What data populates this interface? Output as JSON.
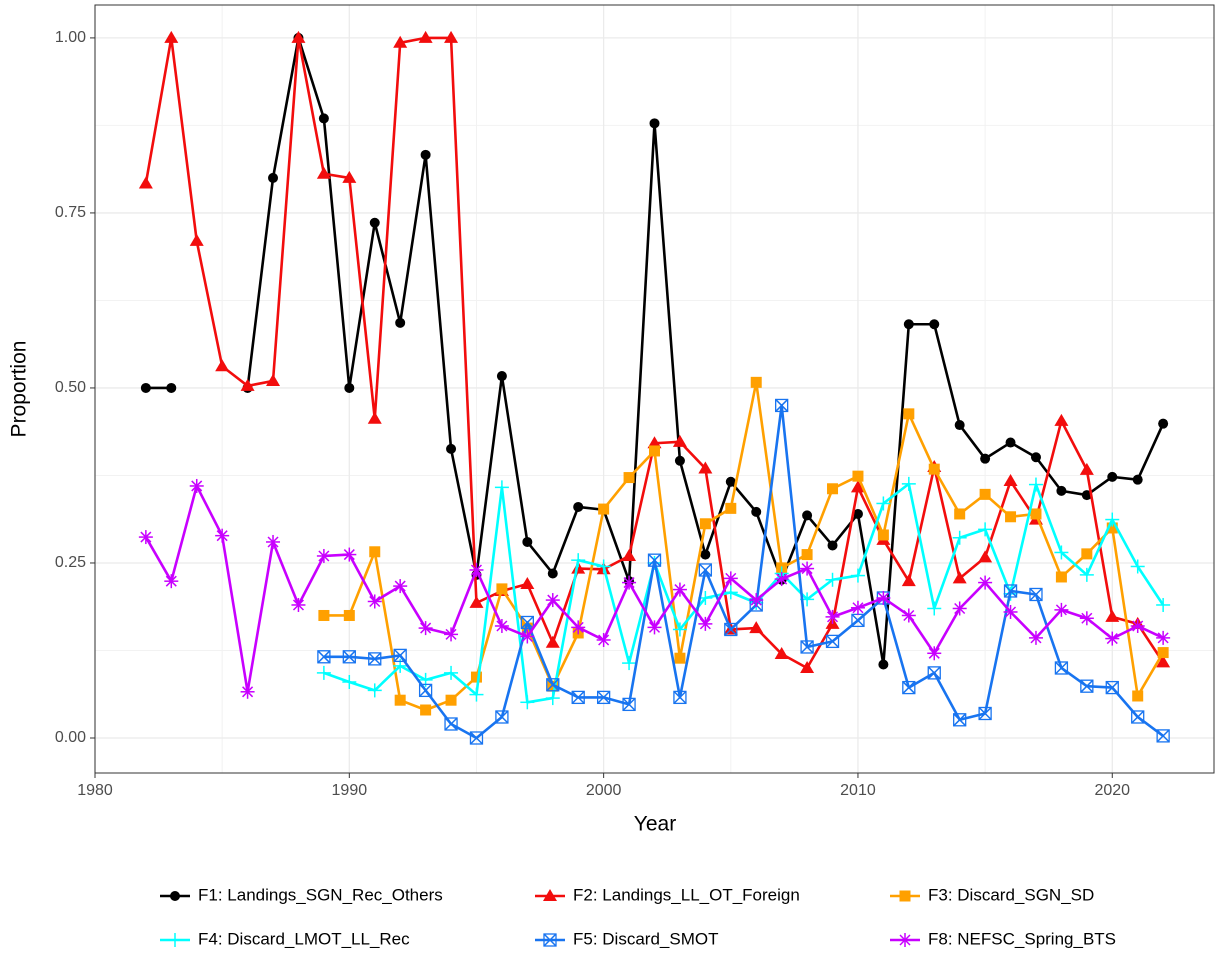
{
  "chart_data": {
    "type": "line",
    "x_label": "Year",
    "y_label": "Proportion",
    "x": [
      1982,
      1983,
      1984,
      1985,
      1986,
      1987,
      1988,
      1989,
      1990,
      1991,
      1992,
      1993,
      1994,
      1995,
      1996,
      1997,
      1998,
      1999,
      2000,
      2001,
      2002,
      2003,
      2004,
      2005,
      2006,
      2007,
      2008,
      2009,
      2010,
      2011,
      2012,
      2013,
      2014,
      2015,
      2016,
      2017,
      2018,
      2019,
      2020,
      2021,
      2022
    ],
    "xlim": [
      1980,
      2024
    ],
    "xticks": [
      1980,
      1990,
      2000,
      2010,
      2020
    ],
    "ylim": [
      -0.05,
      1.047
    ],
    "yticks": [
      {
        "value": 0,
        "label": "0.00"
      },
      {
        "value": 0.25,
        "label": "0.25"
      },
      {
        "value": 0.5,
        "label": "0.50"
      },
      {
        "value": 0.75,
        "label": "0.75"
      },
      {
        "value": 1,
        "label": "1.00"
      }
    ],
    "grid": true,
    "legend": "bottom",
    "series": [
      {
        "name": "F1: Landings_SGN_Rec_Others",
        "color": "#000000",
        "marker": "circle",
        "values": [
          0.5,
          0.5,
          null,
          null,
          0.5,
          0.8,
          1.0,
          0.885,
          0.5,
          0.736,
          0.593,
          0.833,
          0.413,
          0.233,
          0.517,
          0.28,
          0.235,
          0.33,
          0.326,
          0.224,
          0.878,
          0.396,
          0.262,
          0.366,
          0.323,
          0.226,
          0.318,
          0.275,
          0.32,
          0.105,
          0.591,
          0.591,
          0.447,
          0.399,
          0.422,
          0.401,
          0.353,
          0.347,
          0.373,
          0.369,
          0.449
        ]
      },
      {
        "name": "F2: Landings_LL_OT_Foreign",
        "color": "#f20d0d",
        "marker": "triangle",
        "values": [
          0.792,
          1.0,
          0.71,
          0.531,
          0.503,
          0.51,
          1.0,
          0.806,
          0.8,
          0.456,
          0.993,
          1.0,
          1.0,
          0.193,
          0.21,
          0.22,
          0.136,
          0.242,
          0.241,
          0.26,
          0.421,
          0.423,
          0.385,
          0.155,
          0.157,
          0.12,
          0.1,
          0.163,
          0.358,
          0.283,
          0.224,
          0.387,
          0.228,
          0.258,
          0.367,
          0.312,
          0.453,
          0.383,
          0.173,
          0.163,
          0.108
        ]
      },
      {
        "name": "F3: Discard_SGN_SD",
        "color": "#ffa000",
        "marker": "square",
        "values": [
          null,
          null,
          null,
          null,
          null,
          null,
          null,
          0.175,
          0.175,
          0.266,
          0.054,
          0.04,
          0.054,
          0.087,
          0.213,
          0.157,
          0.074,
          0.15,
          0.327,
          0.372,
          0.41,
          0.114,
          0.306,
          0.328,
          0.508,
          0.243,
          0.262,
          0.356,
          0.374,
          0.29,
          0.463,
          0.384,
          0.32,
          0.348,
          0.316,
          0.32,
          0.23,
          0.263,
          0.3,
          0.06,
          0.122
        ]
      },
      {
        "name": "F4: Discard_LMOT_LL_Rec",
        "color": "#00ffff",
        "marker": "plus",
        "values": [
          null,
          null,
          null,
          null,
          null,
          null,
          null,
          0.093,
          0.08,
          0.068,
          0.103,
          0.083,
          0.093,
          0.062,
          0.358,
          0.051,
          0.057,
          0.254,
          0.245,
          0.107,
          0.25,
          0.155,
          0.2,
          0.208,
          0.193,
          0.235,
          0.198,
          0.226,
          0.232,
          0.335,
          0.363,
          0.185,
          0.286,
          0.298,
          0.206,
          0.362,
          0.265,
          0.233,
          0.312,
          0.245,
          0.19
        ]
      },
      {
        "name": "F5: Discard_SMOT",
        "color": "#1874f0",
        "marker": "square-x",
        "values": [
          null,
          null,
          null,
          null,
          null,
          null,
          null,
          0.116,
          0.116,
          0.113,
          0.118,
          0.068,
          0.02,
          0.0,
          0.03,
          0.165,
          0.076,
          0.058,
          0.058,
          0.048,
          0.254,
          0.058,
          0.24,
          0.155,
          0.19,
          0.475,
          0.13,
          0.138,
          0.168,
          0.2,
          0.072,
          0.093,
          0.026,
          0.035,
          0.21,
          0.205,
          0.1,
          0.074,
          0.072,
          0.03,
          0.003
        ]
      },
      {
        "name": "F8: NEFSC_Spring_BTS",
        "color": "#c800ff",
        "marker": "asterisk",
        "values": [
          0.287,
          0.224,
          0.36,
          0.289,
          0.066,
          0.28,
          0.19,
          0.26,
          0.262,
          0.195,
          0.217,
          0.157,
          0.148,
          0.24,
          0.16,
          0.145,
          0.197,
          0.158,
          0.14,
          0.222,
          0.158,
          0.212,
          0.163,
          0.228,
          0.197,
          0.227,
          0.242,
          0.173,
          0.186,
          0.2,
          0.175,
          0.121,
          0.185,
          0.222,
          0.18,
          0.143,
          0.183,
          0.171,
          0.142,
          0.16,
          0.143
        ]
      }
    ]
  }
}
